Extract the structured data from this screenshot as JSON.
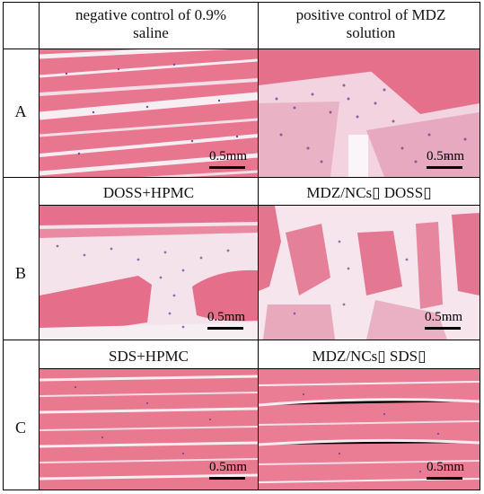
{
  "header": {
    "col1": "negative control of 0.9% saline",
    "col2": "positive control of MDZ solution"
  },
  "rows": [
    {
      "label": "A"
    },
    {
      "label": "B",
      "col1_title": "DOSS+HPMC",
      "col2_title": "MDZ/NCs▯ DOSS▯"
    },
    {
      "label": "C",
      "col1_title": "SDS+HPMC",
      "col2_title": "MDZ/NCs▯ SDS▯"
    }
  ],
  "scale_label": "0.5mm",
  "colors": {
    "muscle": "#e8738f",
    "muscle_dark": "#d9587a",
    "connective": "#f1d5e1",
    "background": "#f7eef3",
    "nuclei": "#6b3f8f"
  }
}
